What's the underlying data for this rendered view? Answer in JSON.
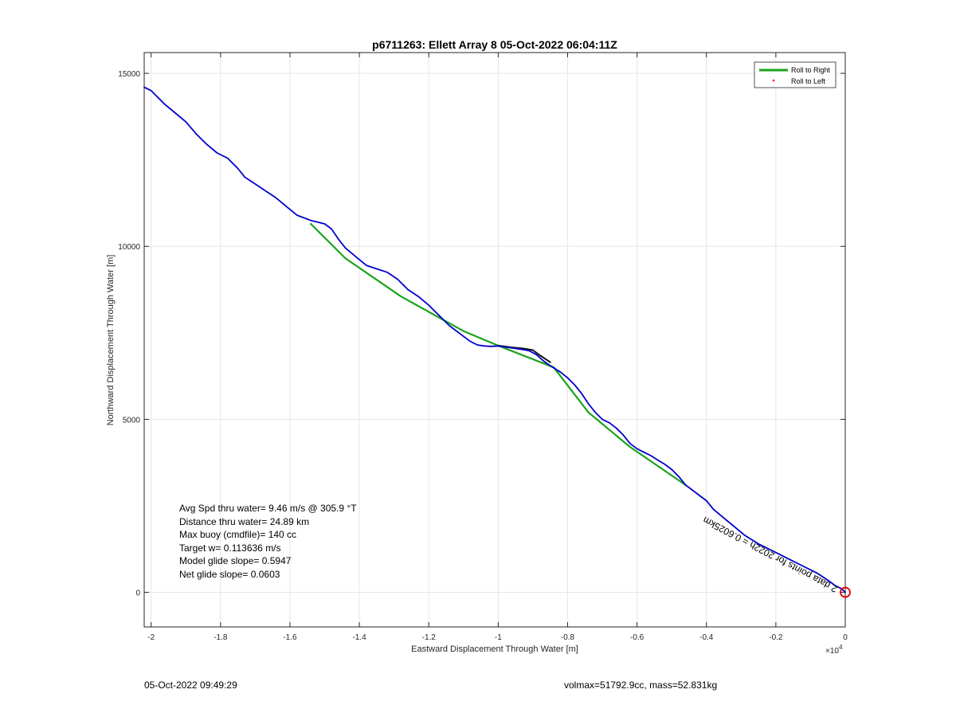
{
  "chart_data": {
    "type": "line",
    "title": "p6711263: Ellett Array 8 05-Oct-2022 06:04:11Z",
    "xlabel": "Eastward Displacement Through Water [m]",
    "ylabel": "Northward Displacement Through Water [m]",
    "x_exponent_label": "×10",
    "x_exponent_power": "4",
    "xlim": [
      -2.02,
      0
    ],
    "ylim": [
      -1000,
      15600
    ],
    "x_scale": 10000,
    "x_ticks": [
      -2,
      -1.8,
      -1.6,
      -1.4,
      -1.2,
      -1,
      -0.8,
      -0.6,
      -0.4,
      -0.2,
      0
    ],
    "x_tick_labels": [
      "-2",
      "-1.8",
      "-1.6",
      "-1.4",
      "-1.2",
      "-1",
      "-0.8",
      "-0.6",
      "-0.4",
      "-0.2",
      "0"
    ],
    "y_ticks": [
      0,
      5000,
      10000,
      15000
    ],
    "y_tick_labels": [
      "0",
      "5000",
      "10000",
      "15000"
    ],
    "grid": true,
    "legend_placement": "top-right",
    "legend": [
      {
        "name": "Roll to Right",
        "color": "#1aa31a",
        "style": "line"
      },
      {
        "name": "Roll to Left",
        "color": "#ff0000",
        "style": "dot"
      }
    ],
    "series": [
      {
        "color": "#1aa31a",
        "x": [
          -15400,
          -14400,
          -12800,
          -11000,
          -10000,
          -8400,
          -7400,
          -6200,
          -4600
        ],
        "y": [
          10650,
          9650,
          8550,
          7550,
          7130,
          6500,
          5200,
          4200,
          3100
        ]
      },
      {
        "color": "#111111",
        "x": [
          -10000,
          -9600,
          -9300,
          -9000,
          -8800,
          -8500
        ],
        "y": [
          7130,
          7080,
          7050,
          7000,
          6850,
          6650
        ]
      },
      {
        "color": "#0000cc",
        "x": [
          -20200,
          -20000,
          -19800,
          -19600,
          -19300,
          -19000,
          -18700,
          -18400,
          -18100,
          -17800,
          -17500,
          -17300,
          -17000,
          -16700,
          -16400,
          -16100,
          -15800,
          -15400,
          -15000,
          -14800,
          -14600,
          -14400,
          -14100,
          -13800,
          -13500,
          -13200,
          -12900,
          -12600,
          -12300,
          -12000,
          -11700,
          -11400,
          -11000,
          -10800,
          -10600,
          -10400,
          -10200,
          -10000,
          -9600,
          -9300,
          -9100,
          -8900,
          -8700,
          -8500,
          -8200,
          -8000,
          -7800,
          -7600,
          -7400,
          -7200,
          -7000,
          -6800,
          -6600,
          -6400,
          -6200,
          -6000,
          -5800,
          -5600,
          -5400,
          -5200,
          -5000,
          -4800,
          -4600,
          -4400,
          -4200,
          -4000,
          -3800,
          -3500,
          -3200,
          -2900,
          -2500,
          -2000,
          -1600,
          -1200,
          -800,
          -500,
          -300,
          -100,
          0
        ],
        "y": [
          14600,
          14500,
          14300,
          14100,
          13850,
          13600,
          13250,
          12950,
          12700,
          12550,
          12250,
          12000,
          11800,
          11600,
          11400,
          11150,
          10900,
          10750,
          10650,
          10500,
          10200,
          9950,
          9700,
          9450,
          9350,
          9250,
          9050,
          8750,
          8550,
          8300,
          8000,
          7700,
          7400,
          7250,
          7150,
          7120,
          7110,
          7120,
          7060,
          7020,
          6980,
          6870,
          6690,
          6550,
          6360,
          6200,
          6000,
          5750,
          5450,
          5200,
          5000,
          4900,
          4750,
          4550,
          4300,
          4150,
          4050,
          3950,
          3820,
          3700,
          3550,
          3350,
          3100,
          2950,
          2800,
          2650,
          2400,
          2150,
          1900,
          1650,
          1400,
          1150,
          950,
          750,
          550,
          350,
          200,
          100,
          0
        ]
      }
    ],
    "start_marker": {
      "x": 0,
      "y": 0,
      "color": "#dd0000"
    },
    "annotation_rotated": "2 data points for 2022h = 0.6025km",
    "annotation_box": [
      "Avg Spd thru water=  9.46 m/s @ 305.9 °T",
      "Distance thru water= 24.89 km",
      "Max buoy (cmdfile)= 140 cc",
      "Target w= 0.113636 m/s",
      "Model glide slope= 0.5947",
      "Net glide slope= 0.0603"
    ]
  },
  "footer": {
    "timestamp": "05-Oct-2022 09:49:29",
    "volmax": "volmax=51792.9cc, mass=52.831kg"
  }
}
